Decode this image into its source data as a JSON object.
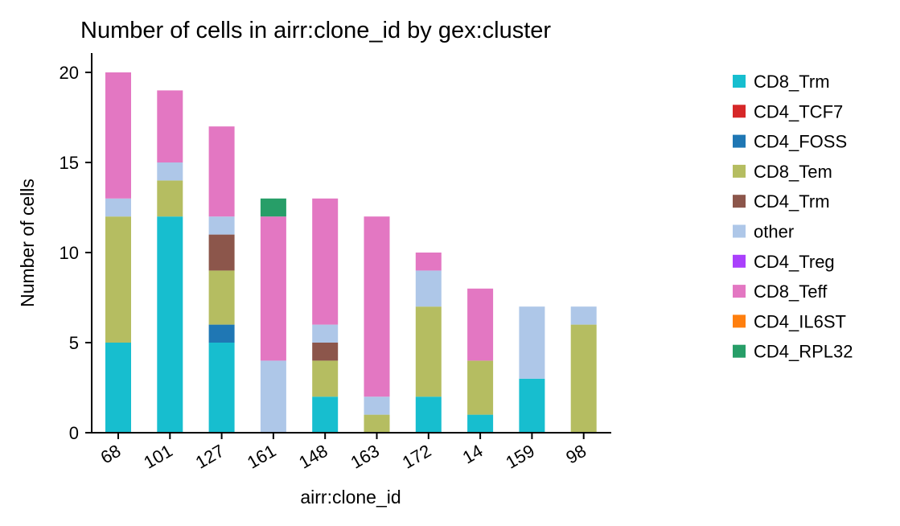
{
  "chart_data": {
    "type": "bar",
    "stacked": true,
    "title": "Number of cells in airr:clone_id by gex:cluster",
    "xlabel": "airr:clone_id",
    "ylabel": "Number of cells",
    "ylim": [
      0,
      21
    ],
    "yticks": [
      0,
      5,
      10,
      15,
      20
    ],
    "grid": false,
    "legend_position": "right",
    "categories": [
      "68",
      "101",
      "127",
      "161",
      "148",
      "163",
      "172",
      "14",
      "159",
      "98"
    ],
    "series": [
      {
        "name": "CD8_Trm",
        "color": "#17becf",
        "values": [
          5,
          12,
          5,
          0,
          2,
          0,
          2,
          1,
          3,
          0
        ]
      },
      {
        "name": "CD4_TCF7",
        "color": "#d62728",
        "values": [
          0,
          0,
          0,
          0,
          0,
          0,
          0,
          0,
          0,
          0
        ]
      },
      {
        "name": "CD4_FOSS",
        "color": "#1f77b4",
        "values": [
          0,
          0,
          1,
          0,
          0,
          0,
          0,
          0,
          0,
          0
        ]
      },
      {
        "name": "CD8_Tem",
        "color": "#b5bd61",
        "values": [
          7,
          2,
          3,
          0,
          2,
          1,
          5,
          3,
          0,
          6
        ]
      },
      {
        "name": "CD4_Trm",
        "color": "#8c564b",
        "values": [
          0,
          0,
          2,
          0,
          1,
          0,
          0,
          0,
          0,
          0
        ]
      },
      {
        "name": "other",
        "color": "#aec7e8",
        "values": [
          1,
          1,
          1,
          4,
          1,
          1,
          2,
          0,
          4,
          1
        ]
      },
      {
        "name": "CD4_Treg",
        "color": "#aa40fc",
        "values": [
          0,
          0,
          0,
          0,
          0,
          0,
          0,
          0,
          0,
          0
        ]
      },
      {
        "name": "CD8_Teff",
        "color": "#e377c2",
        "values": [
          7,
          4,
          5,
          8,
          7,
          10,
          1,
          4,
          0,
          0
        ]
      },
      {
        "name": "CD4_IL6ST",
        "color": "#ff7f0e",
        "values": [
          0,
          0,
          0,
          0,
          0,
          0,
          0,
          0,
          0,
          0
        ]
      },
      {
        "name": "CD4_RPL32",
        "color": "#279e68",
        "values": [
          0,
          0,
          0,
          1,
          0,
          0,
          0,
          0,
          0,
          0
        ]
      }
    ]
  }
}
